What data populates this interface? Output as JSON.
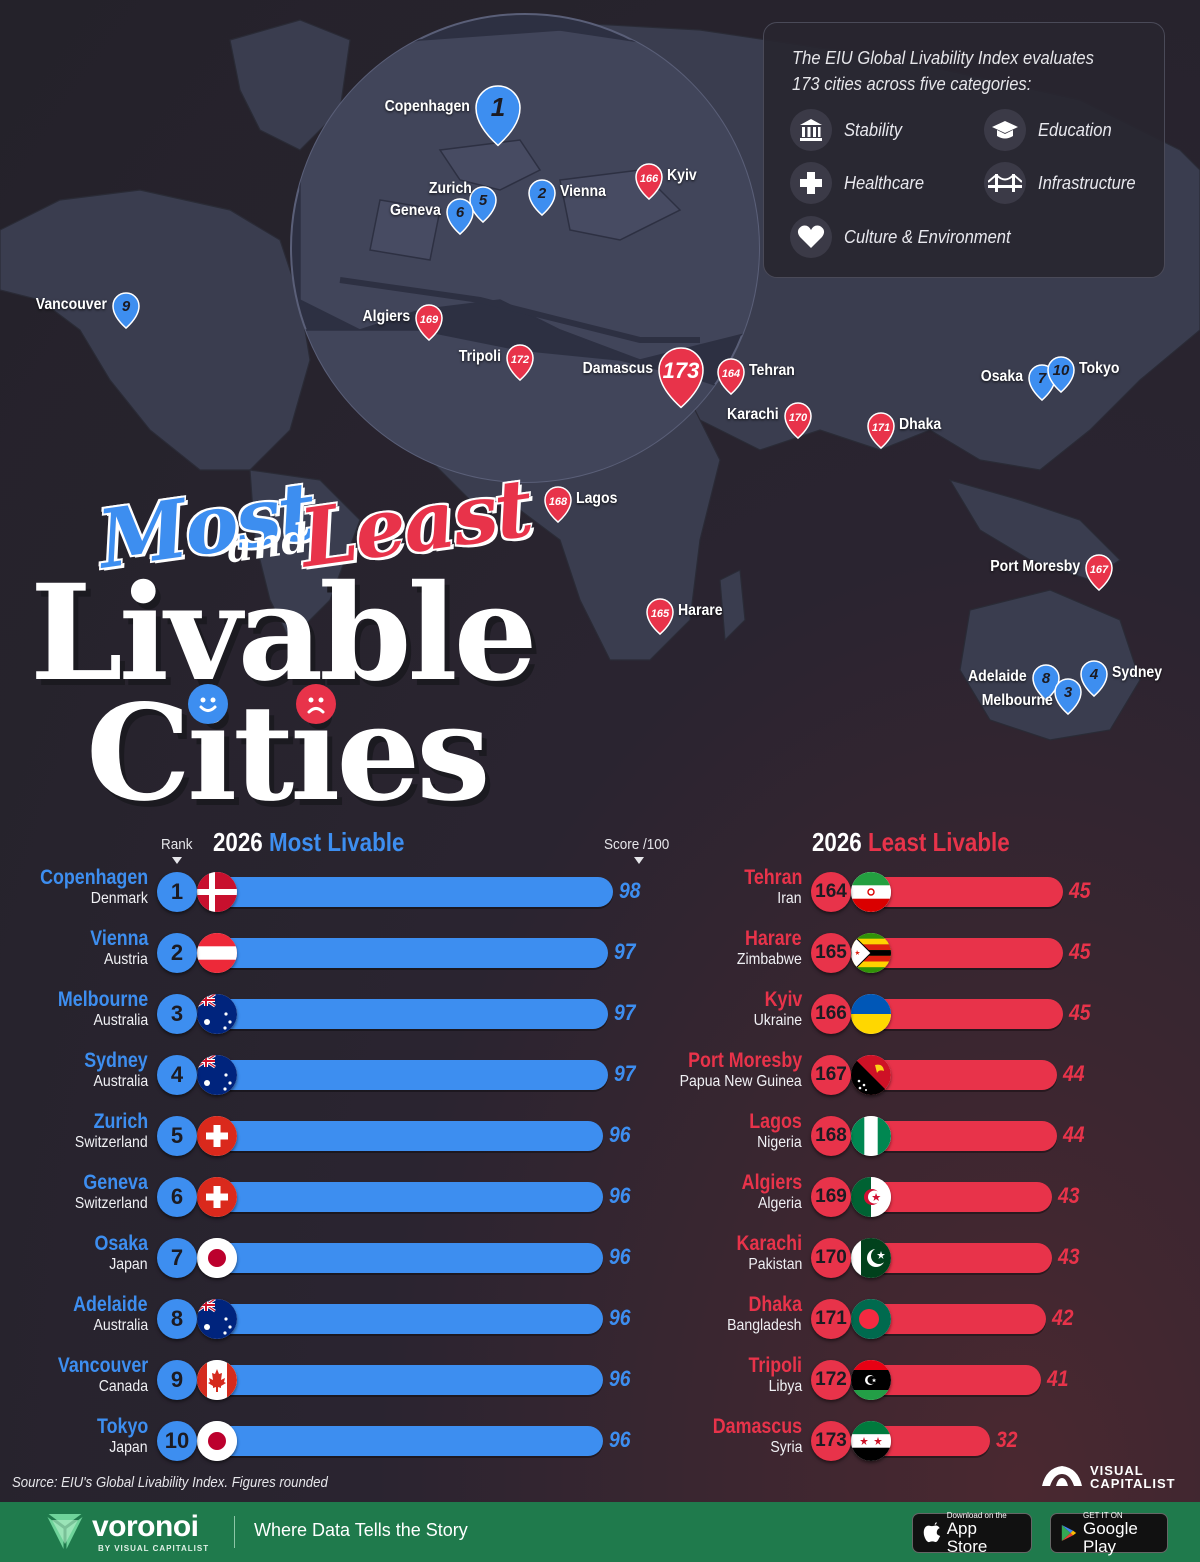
{
  "legend": {
    "intro": "The EIU Global Livability Index evaluates 173 cities across five categories:",
    "categories": [
      {
        "label": "Stability",
        "icon": "bank-icon"
      },
      {
        "label": "Education",
        "icon": "graduation-cap-icon"
      },
      {
        "label": "Healthcare",
        "icon": "medical-cross-icon"
      },
      {
        "label": "Infrastructure",
        "icon": "bridge-icon"
      },
      {
        "label": "Culture & Environment",
        "icon": "heart-icon"
      }
    ]
  },
  "headline": {
    "most": "Most",
    "and": "and",
    "least": "Least",
    "livable": "Livable",
    "cities": "Cities"
  },
  "map_pins": [
    {
      "city": "Copenhagen",
      "rank": "1"
    },
    {
      "city": "Vienna",
      "rank": "2"
    },
    {
      "city": "Zurich",
      "rank": "5"
    },
    {
      "city": "Geneva",
      "rank": "6"
    },
    {
      "city": "Kyiv",
      "rank": "166"
    },
    {
      "city": "Vancouver",
      "rank": "9"
    },
    {
      "city": "Algiers",
      "rank": "169"
    },
    {
      "city": "Tripoli",
      "rank": "172"
    },
    {
      "city": "Damascus",
      "rank": "173"
    },
    {
      "city": "Tehran",
      "rank": "164"
    },
    {
      "city": "Karachi",
      "rank": "170"
    },
    {
      "city": "Dhaka",
      "rank": "171"
    },
    {
      "city": "Osaka",
      "rank": "7"
    },
    {
      "city": "Tokyo",
      "rank": "10"
    },
    {
      "city": "Lagos",
      "rank": "168"
    },
    {
      "city": "Harare",
      "rank": "165"
    },
    {
      "city": "Port Moresby",
      "rank": "167"
    },
    {
      "city": "Adelaide",
      "rank": "8"
    },
    {
      "city": "Melbourne",
      "rank": "3"
    },
    {
      "city": "Sydney",
      "rank": "4"
    }
  ],
  "headers": {
    "rank": "Rank",
    "year": "2026",
    "most": "Most Livable",
    "least": "Least Livable",
    "score": "Score /100"
  },
  "chart_data": [
    {
      "type": "bar",
      "title": "2026 Most Livable",
      "xlabel": "Score /100",
      "xlim": [
        0,
        100
      ],
      "rows": [
        {
          "rank": 1,
          "city": "Copenhagen",
          "country": "Denmark",
          "score": 98,
          "flag": "denmark-flag-icon"
        },
        {
          "rank": 2,
          "city": "Vienna",
          "country": "Austria",
          "score": 97,
          "flag": "austria-flag-icon"
        },
        {
          "rank": 3,
          "city": "Melbourne",
          "country": "Australia",
          "score": 97,
          "flag": "australia-flag-icon"
        },
        {
          "rank": 4,
          "city": "Sydney",
          "country": "Australia",
          "score": 97,
          "flag": "australia-flag-icon"
        },
        {
          "rank": 5,
          "city": "Zurich",
          "country": "Switzerland",
          "score": 96,
          "flag": "switzerland-flag-icon"
        },
        {
          "rank": 6,
          "city": "Geneva",
          "country": "Switzerland",
          "score": 96,
          "flag": "switzerland-flag-icon"
        },
        {
          "rank": 7,
          "city": "Osaka",
          "country": "Japan",
          "score": 96,
          "flag": "japan-flag-icon"
        },
        {
          "rank": 8,
          "city": "Adelaide",
          "country": "Australia",
          "score": 96,
          "flag": "australia-flag-icon"
        },
        {
          "rank": 9,
          "city": "Vancouver",
          "country": "Canada",
          "score": 96,
          "flag": "canada-flag-icon"
        },
        {
          "rank": 10,
          "city": "Tokyo",
          "country": "Japan",
          "score": 96,
          "flag": "japan-flag-icon"
        }
      ]
    },
    {
      "type": "bar",
      "title": "2026 Least Livable",
      "xlim": [
        0,
        100
      ],
      "rows": [
        {
          "rank": 164,
          "city": "Tehran",
          "country": "Iran",
          "score": 45,
          "flag": "iran-flag-icon"
        },
        {
          "rank": 165,
          "city": "Harare",
          "country": "Zimbabwe",
          "score": 45,
          "flag": "zimbabwe-flag-icon"
        },
        {
          "rank": 166,
          "city": "Kyiv",
          "country": "Ukraine",
          "score": 45,
          "flag": "ukraine-flag-icon"
        },
        {
          "rank": 167,
          "city": "Port Moresby",
          "country": "Papua New Guinea",
          "score": 44,
          "flag": "papua-new-guinea-flag-icon"
        },
        {
          "rank": 168,
          "city": "Lagos",
          "country": "Nigeria",
          "score": 44,
          "flag": "nigeria-flag-icon"
        },
        {
          "rank": 169,
          "city": "Algiers",
          "country": "Algeria",
          "score": 43,
          "flag": "algeria-flag-icon"
        },
        {
          "rank": 170,
          "city": "Karachi",
          "country": "Pakistan",
          "score": 43,
          "flag": "pakistan-flag-icon"
        },
        {
          "rank": 171,
          "city": "Dhaka",
          "country": "Bangladesh",
          "score": 42,
          "flag": "bangladesh-flag-icon"
        },
        {
          "rank": 172,
          "city": "Tripoli",
          "country": "Libya",
          "score": 41,
          "flag": "libya-flag-icon"
        },
        {
          "rank": 173,
          "city": "Damascus",
          "country": "Syria",
          "score": 32,
          "flag": "syria-flag-icon"
        }
      ]
    }
  ],
  "colors": {
    "most": "#3d8ef0",
    "least": "#e8334a",
    "background": "#26232c"
  },
  "source": "Source: EIU's Global Livability Index. Figures rounded",
  "brand": {
    "vc_line1": "VISUAL",
    "vc_line2": "CAPITALIST",
    "voronoi": "voronoi",
    "voronoi_sub": "BY VISUAL CAPITALIST",
    "tagline": "Where Data Tells the Story",
    "appstore_small": "Download on the",
    "appstore_big": "App Store",
    "gplay_small": "GET IT ON",
    "gplay_big": "Google Play"
  }
}
